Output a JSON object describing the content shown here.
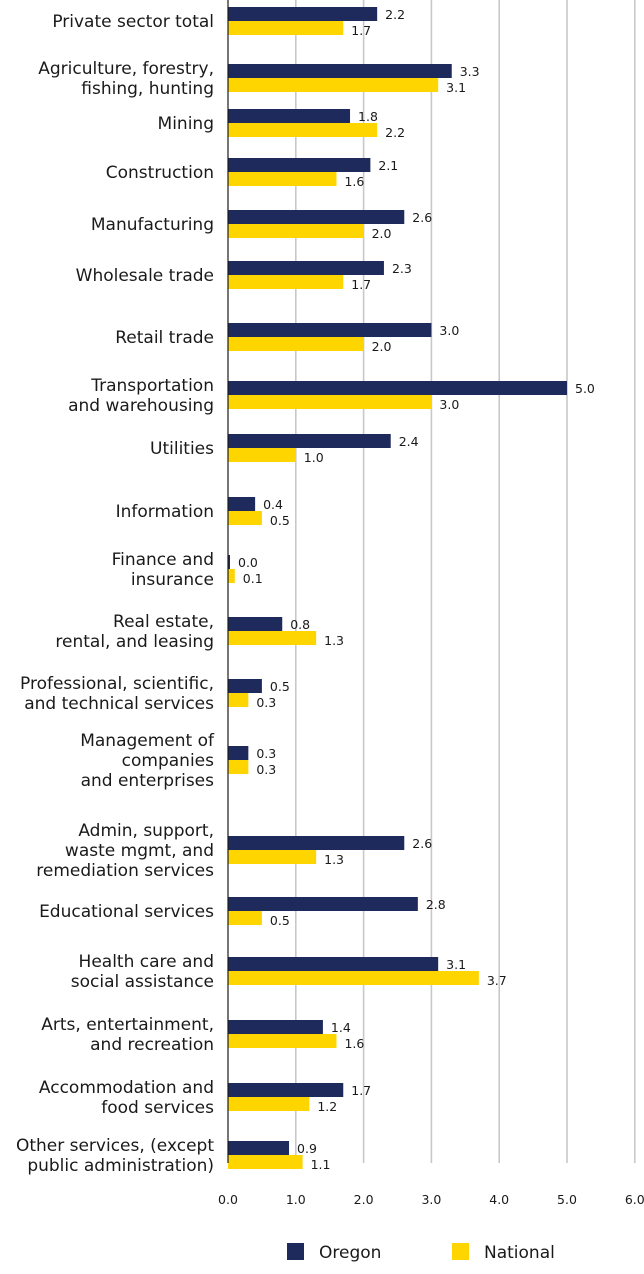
{
  "chart_data": {
    "type": "bar",
    "orientation": "horizontal",
    "categories": [
      [
        "Private sector total"
      ],
      [
        "Agriculture, forestry,",
        "fishing, hunting"
      ],
      [
        "Mining"
      ],
      [
        "Construction"
      ],
      [
        "Manufacturing"
      ],
      [
        "Wholesale trade"
      ],
      [
        "Retail trade"
      ],
      [
        "Transportation",
        "and warehousing"
      ],
      [
        "Utilities"
      ],
      [
        "Information"
      ],
      [
        "Finance and",
        "insurance"
      ],
      [
        "Real estate,",
        "rental, and leasing"
      ],
      [
        "Professional, scientific,",
        "and technical services"
      ],
      [
        "Management of",
        "companies",
        "and enterprises"
      ],
      [
        "Admin, support,",
        "waste mgmt, and",
        "remediation services"
      ],
      [
        "Educational services"
      ],
      [
        "Health care and",
        "social assistance"
      ],
      [
        "Arts, entertainment,",
        "and recreation"
      ],
      [
        "Accommodation and",
        "food services"
      ],
      [
        "Other services, (except",
        "public administration)"
      ]
    ],
    "series": [
      {
        "name": "Oregon",
        "color": "#1f2a5c",
        "values": [
          2.2,
          3.3,
          1.8,
          2.1,
          2.6,
          2.3,
          3.0,
          5.0,
          2.4,
          0.4,
          0.0,
          0.8,
          0.5,
          0.3,
          2.6,
          2.8,
          3.1,
          1.4,
          1.7,
          0.9
        ],
        "labels": [
          "2.2",
          "3.3",
          "1.8",
          "2.1",
          "2.6",
          "2.3",
          "3.0",
          "5.0",
          "2.4",
          "0.4",
          "0.0",
          "0.8",
          "0.5",
          "0.3",
          "2.6",
          "2.8",
          "3.1",
          "1.4",
          "1.7",
          "0.9"
        ]
      },
      {
        "name": "National",
        "color": "#ffd500",
        "values": [
          1.7,
          3.1,
          2.2,
          1.6,
          2.0,
          1.7,
          2.0,
          3.0,
          1.0,
          0.5,
          0.1,
          1.3,
          0.3,
          0.3,
          1.3,
          0.5,
          3.7,
          1.6,
          1.2,
          1.1
        ],
        "labels": [
          "1.7",
          "3.1",
          "2.2",
          "1.6",
          "2.0",
          "1.7",
          "2.0",
          "3.0",
          "1.0",
          "0.5",
          "0.1",
          "1.3",
          "0.3",
          "0.3",
          "1.3",
          "0.5",
          "3.7",
          "1.6",
          "1.2",
          "1.1"
        ]
      }
    ],
    "x_ticks": [
      "0.0",
      "1.0",
      "2.0",
      "3.0",
      "4.0",
      "5.0",
      "6.0"
    ],
    "xlim": [
      0,
      6
    ],
    "grid": "vertical",
    "legend_position": "bottom",
    "gridline_color": "#c8c8c8"
  }
}
